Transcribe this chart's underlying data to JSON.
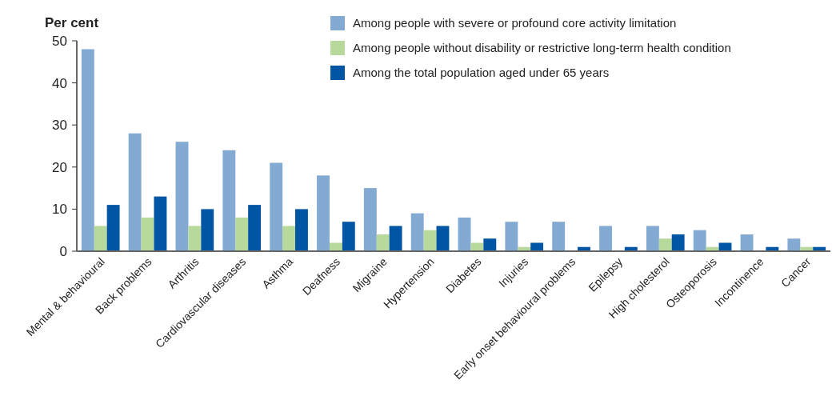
{
  "chart_data": {
    "type": "bar",
    "ylabel": "Per cent",
    "categories": [
      "Mental & behavioural",
      "Back problems",
      "Arthritis",
      "Cardiovascular diseases",
      "Asthma",
      "Deafness",
      "Migraine",
      "Hypertension",
      "Diabetes",
      "Injuries",
      "Early onset behavioural problems",
      "Epilepsy",
      "High cholesterol",
      "Osteoporosis",
      "Incontinence",
      "Cancer"
    ],
    "series": [
      {
        "name": "Among people with severe or profound core activity limitation",
        "color": "#82aad2",
        "values": [
          48,
          28,
          26,
          24,
          21,
          18,
          15,
          9,
          8,
          7,
          7,
          6,
          6,
          5,
          4,
          3
        ]
      },
      {
        "name": "Among people without disability or restrictive long-term health condition",
        "color": "#b7d99c",
        "values": [
          6,
          8,
          6,
          8,
          6,
          2,
          4,
          5,
          2,
          1,
          0,
          0,
          3,
          1,
          0,
          1
        ]
      },
      {
        "name": "Among the total population aged under 65 years",
        "color": "#0055a5",
        "values": [
          11,
          13,
          10,
          11,
          10,
          7,
          6,
          6,
          3,
          2,
          1,
          1,
          4,
          2,
          1,
          1
        ]
      }
    ],
    "ylim": [
      0,
      50
    ],
    "yticks": [
      0,
      10,
      20,
      30,
      40,
      50
    ],
    "grid": false,
    "legend": "top right"
  }
}
